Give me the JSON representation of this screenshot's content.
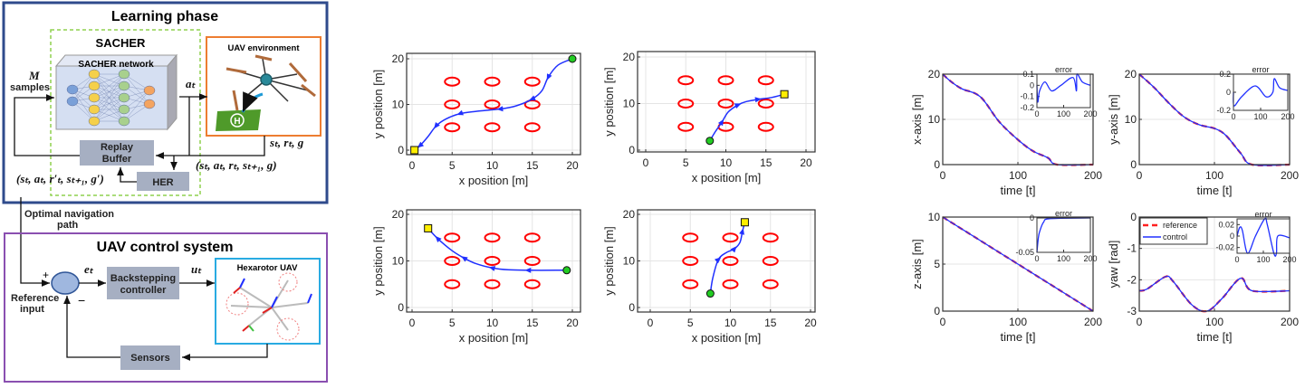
{
  "diagram": {
    "learning_title": "Learning phase",
    "sacher_title": "SACHER",
    "network_label": "SACHER network",
    "env_label": "UAV environment",
    "replay_label_1": "Replay",
    "replay_label_2": "Buffer",
    "her_label": "HER",
    "m_label": "M",
    "samples_label": "samples",
    "action": "aₜ",
    "env_output": "sₜ, rₜ, g",
    "transition": "(sₜ, aₜ, rₜ, sₜ₊₁, g)",
    "her_transition": "(sₜ, aₜ, r′ₜ, sₜ₊₁, g′)",
    "path_label_1": "Optimal navigation",
    "path_label_2": "path",
    "control_title": "UAV control system",
    "plus": "+",
    "minus": "−",
    "reference_1": "Reference",
    "reference_2": "input",
    "error": "eₜ",
    "controller_1": "Backstepping",
    "controller_2": "controller",
    "control_input": "uₜ",
    "hexarotor_label": "Hexarotor UAV",
    "sensors_label": "Sensors",
    "colors": {
      "learning_border": "#2f4b8c",
      "sacher_border": "#8fd14f",
      "env_border": "#ed7d31",
      "control_border": "#8a4fb0",
      "hexa_border": "#29abe2",
      "block_fill": "#a6afc2"
    }
  },
  "chart_data": [
    {
      "type": "line",
      "xlabel": "x position [m]",
      "ylabel": "y position [m]",
      "xlim": [
        -1,
        21
      ],
      "ylim": [
        -1,
        21
      ],
      "xticks": [
        0,
        5,
        10,
        15,
        20
      ],
      "yticks": [
        0,
        10,
        20
      ],
      "grid": true,
      "obstacles": {
        "x": [
          5,
          10,
          15
        ],
        "y": [
          5,
          10,
          15
        ]
      },
      "start": [
        20,
        20
      ],
      "goal": [
        0.3,
        0
      ],
      "path": [
        [
          20,
          20
        ],
        [
          18.2,
          18.6
        ],
        [
          17,
          16
        ],
        [
          16.2,
          13
        ],
        [
          15,
          11.2
        ],
        [
          13,
          9.7
        ],
        [
          11,
          9
        ],
        [
          8,
          8.5
        ],
        [
          6,
          8
        ],
        [
          4.2,
          6.8
        ],
        [
          3,
          5.3
        ],
        [
          2,
          3
        ],
        [
          1,
          1
        ],
        [
          0.3,
          0
        ]
      ]
    },
    {
      "type": "line",
      "xlabel": "x position [m]",
      "ylabel": "y position [m]",
      "xlim": [
        -1,
        21
      ],
      "ylim": [
        -1,
        21
      ],
      "xticks": [
        0,
        5,
        10,
        15,
        20
      ],
      "yticks": [
        0,
        10,
        20
      ],
      "grid": true,
      "obstacles": {
        "x": [
          5,
          10,
          15
        ],
        "y": [
          5,
          10,
          15
        ]
      },
      "start": [
        8,
        2
      ],
      "goal": [
        17.3,
        12
      ],
      "path": [
        [
          8,
          2
        ],
        [
          8.7,
          4
        ],
        [
          9.5,
          6
        ],
        [
          10.3,
          8.2
        ],
        [
          11.5,
          9.7
        ],
        [
          12.5,
          10.4
        ],
        [
          14,
          10.9
        ],
        [
          15.7,
          11.3
        ],
        [
          17.3,
          12
        ]
      ]
    },
    {
      "type": "line",
      "xlabel": "x position [m]",
      "ylabel": "y position [m]",
      "xlim": [
        -1,
        21
      ],
      "ylim": [
        -1,
        21
      ],
      "xticks": [
        0,
        5,
        10,
        15,
        20
      ],
      "yticks": [
        0,
        10,
        20
      ],
      "grid": true,
      "obstacles": {
        "x": [
          5,
          10,
          15
        ],
        "y": [
          5,
          10,
          15
        ]
      },
      "start": [
        19.3,
        8
      ],
      "goal": [
        2,
        17
      ],
      "path": [
        [
          19.3,
          8
        ],
        [
          18,
          8
        ],
        [
          14.5,
          8
        ],
        [
          12,
          8.1
        ],
        [
          10,
          8.5
        ],
        [
          8,
          9.4
        ],
        [
          6.5,
          10.6
        ],
        [
          5,
          12.2
        ],
        [
          3.2,
          14.8
        ],
        [
          2,
          17
        ]
      ]
    },
    {
      "type": "line",
      "xlabel": "x position [m]",
      "ylabel": "y position [m]",
      "xlim": [
        -1,
        21
      ],
      "ylim": [
        -1,
        21
      ],
      "xticks": [
        0,
        5,
        10,
        15,
        20
      ],
      "yticks": [
        0,
        10,
        20
      ],
      "grid": true,
      "obstacles": {
        "x": [
          5,
          10,
          15
        ],
        "y": [
          5,
          10,
          15
        ]
      },
      "start": [
        7.5,
        3
      ],
      "goal": [
        11.8,
        18.3
      ],
      "path": [
        [
          7.5,
          3
        ],
        [
          7.8,
          6.3
        ],
        [
          8.5,
          10.3
        ],
        [
          9.5,
          11.8
        ],
        [
          10.5,
          12.6
        ],
        [
          11.2,
          14
        ],
        [
          11.5,
          16.3
        ],
        [
          11.8,
          18.3
        ]
      ]
    },
    {
      "type": "line",
      "xlabel": "time [t]",
      "ylabel": "x-axis [m]",
      "xlim": [
        0,
        200
      ],
      "ylim": [
        0,
        20
      ],
      "xticks": [
        0,
        100,
        200
      ],
      "yticks": [
        0,
        10,
        20
      ],
      "grid": true,
      "series": [
        {
          "name": "reference",
          "points": [
            [
              0,
              20
            ],
            [
              10,
              18.5
            ],
            [
              25,
              16.8
            ],
            [
              50,
              15
            ],
            [
              75,
              9.5
            ],
            [
              100,
              5.5
            ],
            [
              120,
              3
            ],
            [
              140,
              1.5
            ],
            [
              152,
              0
            ],
            [
              200,
              0
            ]
          ]
        },
        {
          "name": "control",
          "points": [
            [
              0,
              20
            ],
            [
              10,
              18.5
            ],
            [
              25,
              16.8
            ],
            [
              50,
              15
            ],
            [
              75,
              9.5
            ],
            [
              100,
              5.5
            ],
            [
              120,
              3
            ],
            [
              140,
              1.5
            ],
            [
              152,
              0
            ],
            [
              200,
              0
            ]
          ]
        }
      ],
      "inset": {
        "title": "error",
        "xlim": [
          0,
          200
        ],
        "ylim": [
          -0.2,
          0.1
        ],
        "xticks": [
          0,
          100,
          200
        ],
        "yticks": [
          -0.2,
          -0.1,
          0,
          0.1
        ],
        "points": [
          [
            0,
            0
          ],
          [
            3,
            -0.15
          ],
          [
            10,
            -0.05
          ],
          [
            30,
            0.03
          ],
          [
            55,
            -0.05
          ],
          [
            90,
            0
          ],
          [
            135,
            0.07
          ],
          [
            148,
            -0.05
          ],
          [
            150,
            0.1
          ],
          [
            170,
            0.03
          ],
          [
            200,
            0
          ]
        ]
      }
    },
    {
      "type": "line",
      "xlabel": "time [t]",
      "ylabel": "y-axis [m]",
      "xlim": [
        0,
        200
      ],
      "ylim": [
        0,
        20
      ],
      "xticks": [
        0,
        100,
        200
      ],
      "yticks": [
        0,
        10,
        20
      ],
      "grid": true,
      "series": [
        {
          "name": "reference",
          "points": [
            [
              0,
              20
            ],
            [
              20,
              17
            ],
            [
              40,
              13.5
            ],
            [
              60,
              10.5
            ],
            [
              80,
              8.8
            ],
            [
              100,
              8
            ],
            [
              115,
              6.5
            ],
            [
              135,
              2.5
            ],
            [
              150,
              0
            ],
            [
              200,
              0
            ]
          ]
        },
        {
          "name": "control",
          "points": [
            [
              0,
              20
            ],
            [
              20,
              17
            ],
            [
              40,
              13.5
            ],
            [
              60,
              10.5
            ],
            [
              80,
              8.8
            ],
            [
              100,
              8
            ],
            [
              115,
              6.5
            ],
            [
              135,
              2.5
            ],
            [
              150,
              0
            ],
            [
              200,
              0
            ]
          ]
        }
      ],
      "inset": {
        "title": "error",
        "xlim": [
          0,
          200
        ],
        "ylim": [
          -0.2,
          0.2
        ],
        "xticks": [
          0,
          100,
          200
        ],
        "yticks": [
          -0.2,
          0,
          0.2
        ],
        "points": [
          [
            0,
            0
          ],
          [
            2,
            -0.15
          ],
          [
            30,
            -0.05
          ],
          [
            80,
            0.07
          ],
          [
            120,
            -0.05
          ],
          [
            145,
            0
          ],
          [
            150,
            0.15
          ],
          [
            170,
            0.05
          ],
          [
            200,
            0.02
          ]
        ]
      }
    },
    {
      "type": "line",
      "xlabel": "time [t]",
      "ylabel": "z-axis [m]",
      "xlim": [
        0,
        200
      ],
      "ylim": [
        0,
        10
      ],
      "xticks": [
        0,
        100,
        200
      ],
      "yticks": [
        0,
        5,
        10
      ],
      "grid": true,
      "series": [
        {
          "name": "reference",
          "points": [
            [
              0,
              10
            ],
            [
              200,
              0
            ]
          ]
        },
        {
          "name": "control",
          "points": [
            [
              0,
              10
            ],
            [
              200,
              0
            ]
          ]
        }
      ],
      "inset": {
        "title": "error",
        "xlim": [
          0,
          200
        ],
        "ylim": [
          -0.05,
          0
        ],
        "xticks": [
          0,
          100,
          200
        ],
        "yticks": [
          -0.05,
          0
        ],
        "points": [
          [
            0,
            -0.05
          ],
          [
            5,
            -0.03
          ],
          [
            10,
            -0.02
          ],
          [
            25,
            -0.006
          ],
          [
            50,
            -0.001
          ],
          [
            200,
            0
          ]
        ]
      }
    },
    {
      "type": "line",
      "xlabel": "time [t]",
      "ylabel": "yaw [rad]",
      "xlim": [
        0,
        200
      ],
      "ylim": [
        -3,
        0
      ],
      "xticks": [
        0,
        100,
        200
      ],
      "yticks": [
        -3,
        -2,
        -1,
        0
      ],
      "grid": true,
      "legend": {
        "position": "top-left",
        "entries": [
          "reference",
          "control"
        ]
      },
      "series": [
        {
          "name": "reference",
          "points": [
            [
              0,
              -2.35
            ],
            [
              10,
              -2.3
            ],
            [
              35,
              -1.9
            ],
            [
              45,
              -2.05
            ],
            [
              70,
              -2.8
            ],
            [
              90,
              -3
            ],
            [
              110,
              -2.6
            ],
            [
              135,
              -1.95
            ],
            [
              150,
              -2.35
            ],
            [
              200,
              -2.35
            ]
          ]
        },
        {
          "name": "control",
          "points": [
            [
              0,
              -2.35
            ],
            [
              10,
              -2.3
            ],
            [
              35,
              -1.9
            ],
            [
              45,
              -2.05
            ],
            [
              70,
              -2.8
            ],
            [
              90,
              -3
            ],
            [
              110,
              -2.6
            ],
            [
              135,
              -1.95
            ],
            [
              150,
              -2.35
            ],
            [
              200,
              -2.35
            ]
          ]
        }
      ],
      "inset": {
        "title": "error",
        "xlim": [
          0,
          200
        ],
        "ylim": [
          -0.03,
          0.03
        ],
        "xticks": [
          0,
          100,
          200
        ],
        "yticks": [
          -0.02,
          0,
          0.02
        ],
        "points": [
          [
            0,
            0
          ],
          [
            10,
            0.015
          ],
          [
            20,
            0.01
          ],
          [
            40,
            -0.03
          ],
          [
            70,
            0
          ],
          [
            105,
            0.03
          ],
          [
            115,
            0.02
          ],
          [
            140,
            -0.03
          ],
          [
            150,
            -0.03
          ],
          [
            155,
            0
          ],
          [
            200,
            -0.003
          ]
        ]
      }
    }
  ],
  "colors": {
    "reference": "#ff2020",
    "control": "#2030ff",
    "obstacle": "#ff0000",
    "start": "#22cc22",
    "goal": "#ffee00"
  }
}
